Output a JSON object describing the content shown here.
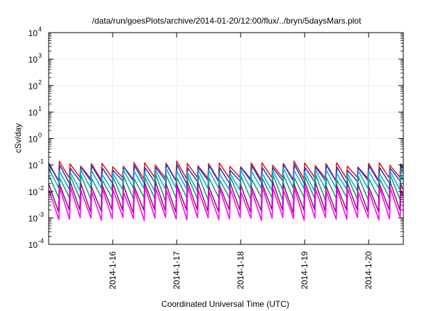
{
  "chart_data": {
    "type": "line",
    "title": "/data/run/goesPlots/archive/2014-01-20/12:00/flux/../bryn/5daysMars.plot",
    "xlabel": "Coordinated Universal Time (UTC)",
    "ylabel": "cSv/day",
    "y_scale": "log",
    "ylim_exp": [
      -4,
      4
    ],
    "y_ticks": [
      {
        "base": "10",
        "exp": "-4"
      },
      {
        "base": "10",
        "exp": "-3"
      },
      {
        "base": "10",
        "exp": "-2"
      },
      {
        "base": "10",
        "exp": "-1"
      },
      {
        "base": "10",
        "exp": "0"
      },
      {
        "base": "10",
        "exp": "1"
      },
      {
        "base": "10",
        "exp": "2"
      },
      {
        "base": "10",
        "exp": "3"
      },
      {
        "base": "10",
        "exp": "4"
      }
    ],
    "xlim": [
      "2014-01-15 00:00",
      "2014-01-20 13:00"
    ],
    "x_ticks": [
      {
        "label": "2014-1-16",
        "day": 1
      },
      {
        "label": "2014-1-17",
        "day": 2
      },
      {
        "label": "2014-1-18",
        "day": 3
      },
      {
        "label": "2014-1-19",
        "day": 4
      },
      {
        "label": "2014-1-20",
        "day": 5
      }
    ],
    "grid": true,
    "sawtooth_period_hours": 4,
    "series": [
      {
        "color": "#e31a1c",
        "peak": 0.11,
        "trough": 0.03
      },
      {
        "color": "#1f3fd6",
        "peak": 0.085,
        "trough": 0.022
      },
      {
        "color": "#12a8d8",
        "peak": 0.06,
        "trough": 0.012
      },
      {
        "color": "#1a9c7a",
        "peak": 0.035,
        "trough": 0.005
      },
      {
        "color": "#8a1a6e",
        "peak": 0.02,
        "trough": 0.0018
      },
      {
        "color": "#ff00ff",
        "peak": 0.012,
        "trough": 0.0009
      }
    ]
  }
}
